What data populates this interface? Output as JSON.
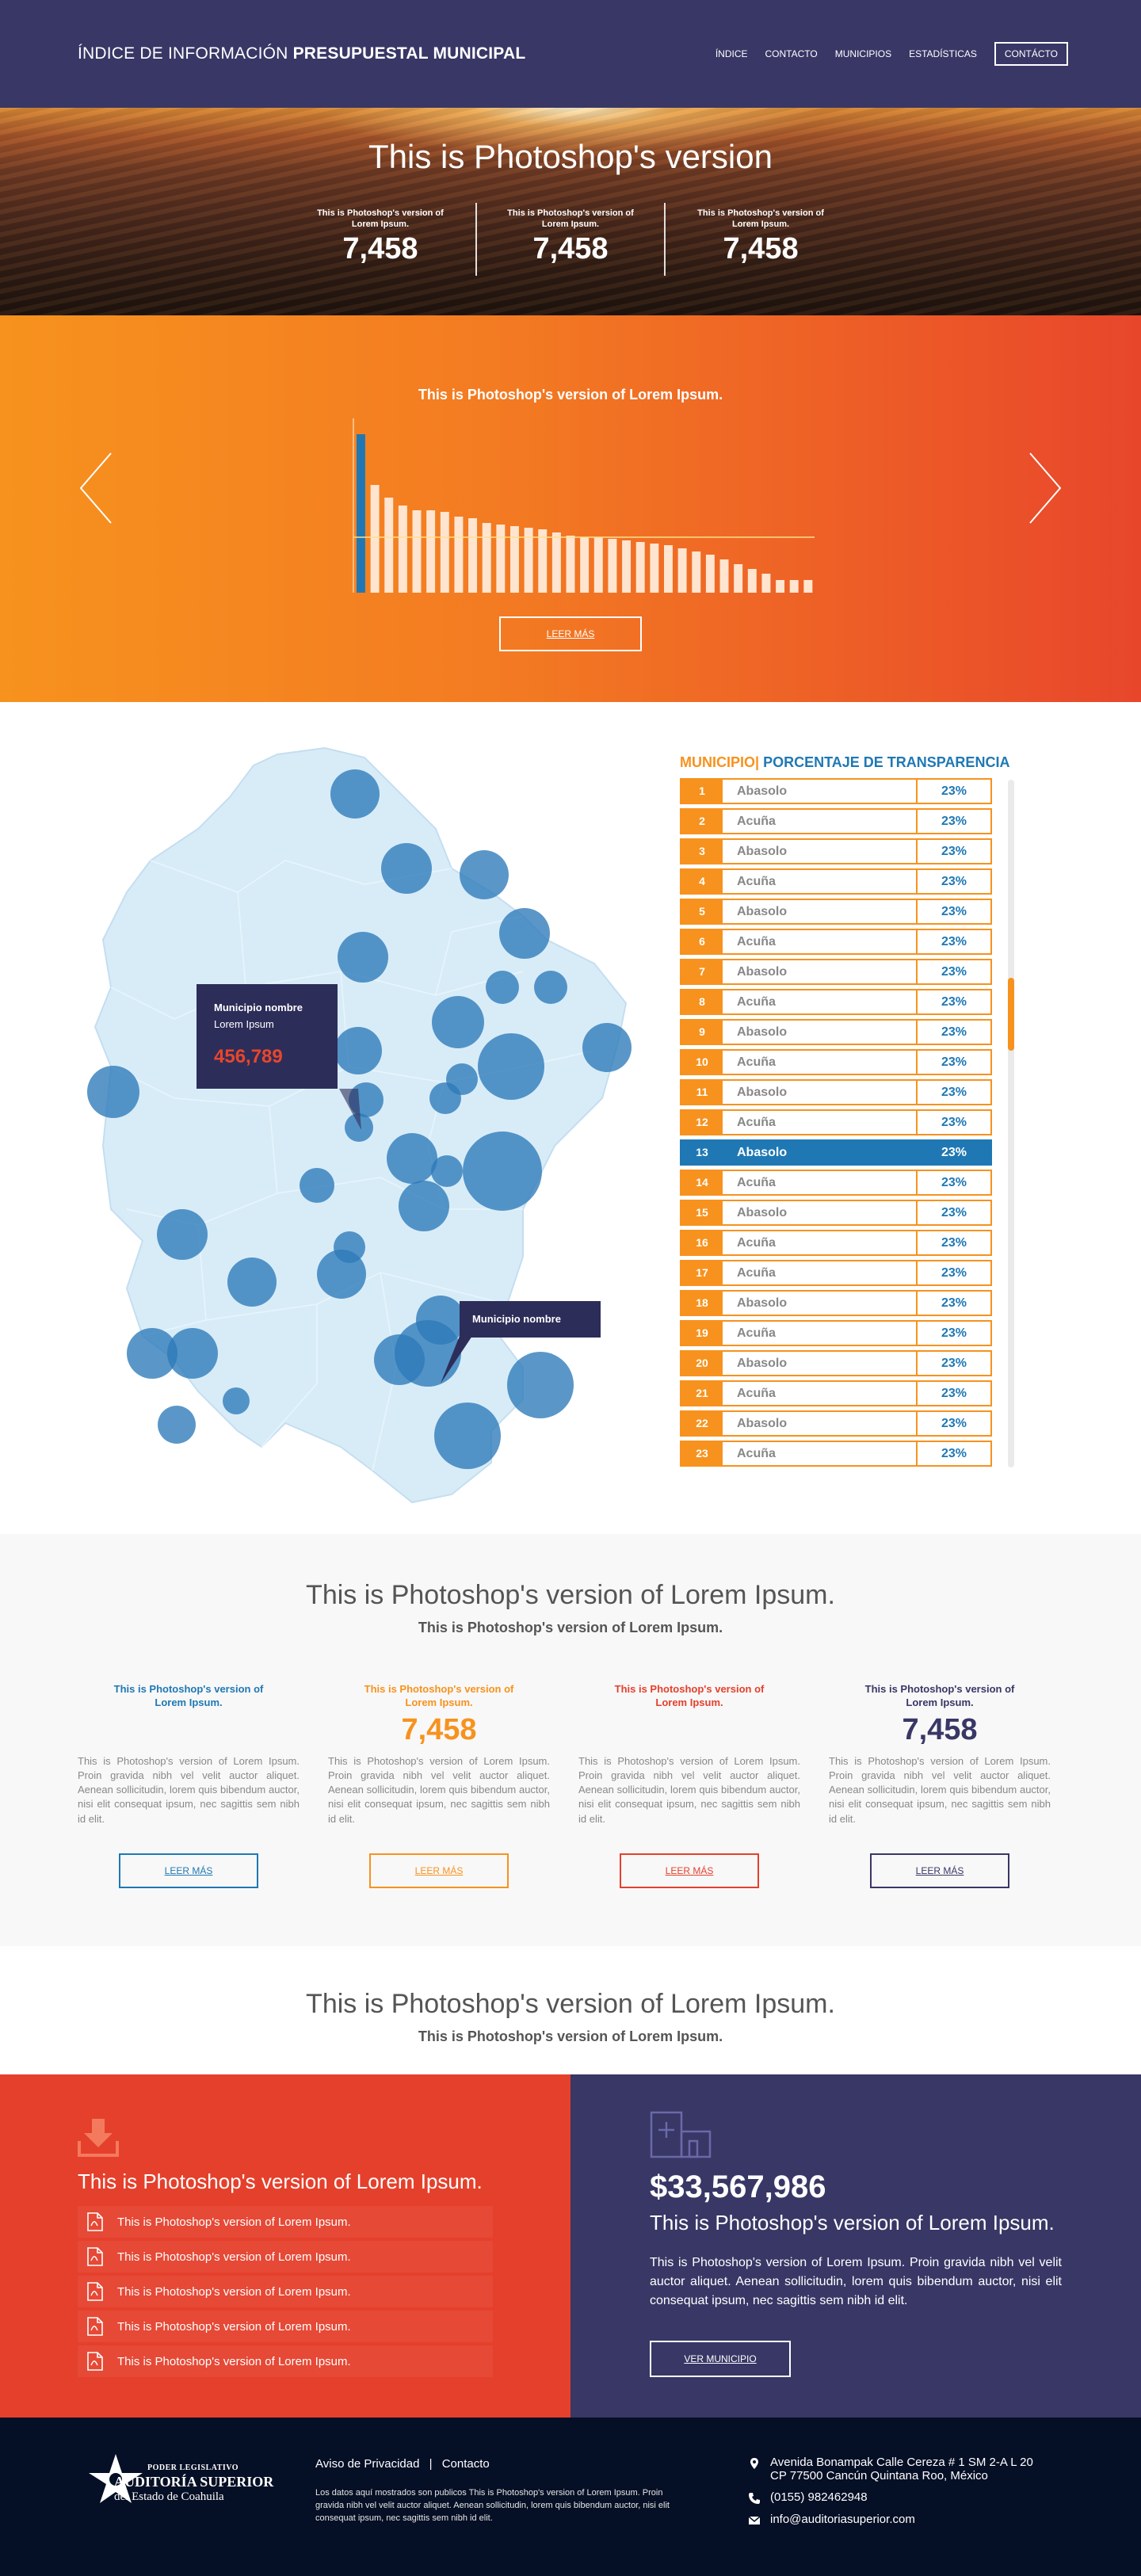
{
  "nav": {
    "brand_light": "ÍNDICE DE INFORMACIÓN",
    "brand_bold": "PRESUPUESTAL MUNICIPAL",
    "links": [
      "ÍNDICE",
      "CONTACTO",
      "MUNICIPIOS",
      "ESTADÍSTICAS"
    ],
    "cta": "CONTÁCTO"
  },
  "hero": {
    "title": "This is Photoshop's version",
    "stats": [
      {
        "label": "This is Photoshop's version of Lorem Ipsum.",
        "value": "7,458"
      },
      {
        "label": "This is Photoshop's version of Lorem Ipsum.",
        "value": "7,458"
      },
      {
        "label": "This is Photoshop's version of Lorem Ipsum.",
        "value": "7,458"
      }
    ]
  },
  "chart_section": {
    "title": "This is Photoshop's version of Lorem Ipsum.",
    "button": "LEER MÁS"
  },
  "chart_data": {
    "type": "bar",
    "title": "This is Photoshop's version of Lorem Ipsum.",
    "values": [
      100,
      68,
      60,
      55,
      52,
      52,
      51,
      48,
      47,
      44,
      43,
      42,
      41,
      40,
      38,
      36,
      35,
      35,
      34,
      33,
      32,
      31,
      30,
      28,
      26,
      24,
      21,
      18,
      15,
      12,
      8,
      8,
      8
    ],
    "highlight_index": 0,
    "reference_line": 35,
    "ylim": [
      0,
      100
    ],
    "colors": {
      "highlight": "#1f78b4",
      "bar": "#ffe5d0",
      "line": "#ffe08a",
      "axis": "#ffd0a0"
    }
  },
  "map": {
    "tooltip_main": {
      "name": "Municipio nombre",
      "sub": "Lorem Ipsum",
      "value": "456,789"
    },
    "tooltip_secondary": {
      "name": "Municipio nombre"
    }
  },
  "table": {
    "header_a": "MUNICIPIO",
    "header_sep": "|",
    "header_b": "PORCENTAJE DE TRANSPARENCIA",
    "selected_index": 12,
    "rows": [
      {
        "n": "1",
        "name": "Abasolo",
        "pct": "23%"
      },
      {
        "n": "2",
        "name": "Acuña",
        "pct": "23%"
      },
      {
        "n": "3",
        "name": "Abasolo",
        "pct": "23%"
      },
      {
        "n": "4",
        "name": "Acuña",
        "pct": "23%"
      },
      {
        "n": "5",
        "name": "Abasolo",
        "pct": "23%"
      },
      {
        "n": "6",
        "name": "Acuña",
        "pct": "23%"
      },
      {
        "n": "7",
        "name": "Abasolo",
        "pct": "23%"
      },
      {
        "n": "8",
        "name": "Acuña",
        "pct": "23%"
      },
      {
        "n": "9",
        "name": "Abasolo",
        "pct": "23%"
      },
      {
        "n": "10",
        "name": "Acuña",
        "pct": "23%"
      },
      {
        "n": "11",
        "name": "Abasolo",
        "pct": "23%"
      },
      {
        "n": "12",
        "name": "Acuña",
        "pct": "23%"
      },
      {
        "n": "13",
        "name": "Abasolo",
        "pct": "23%"
      },
      {
        "n": "14",
        "name": "Acuña",
        "pct": "23%"
      },
      {
        "n": "15",
        "name": "Abasolo",
        "pct": "23%"
      },
      {
        "n": "16",
        "name": "Acuña",
        "pct": "23%"
      },
      {
        "n": "17",
        "name": "Acuña",
        "pct": "23%"
      },
      {
        "n": "18",
        "name": "Abasolo",
        "pct": "23%"
      },
      {
        "n": "19",
        "name": "Acuña",
        "pct": "23%"
      },
      {
        "n": "20",
        "name": "Abasolo",
        "pct": "23%"
      },
      {
        "n": "21",
        "name": "Acuña",
        "pct": "23%"
      },
      {
        "n": "22",
        "name": "Abasolo",
        "pct": "23%"
      },
      {
        "n": "23",
        "name": "Acuña",
        "pct": "23%"
      }
    ]
  },
  "info": {
    "title": "This is Photoshop's version of Lorem Ipsum.",
    "subtitle": "This is Photoshop's version of Lorem Ipsum.",
    "cards": [
      {
        "head": "This is Photoshop's version of Lorem Ipsum.",
        "value": "",
        "body": "This is Photoshop's version of Lorem Ipsum. Proin gravida nibh vel velit auctor aliquet. Aenean sollicitudin, lorem quis bibendum auctor, nisi elit consequat ipsum, nec sagittis sem nibh id elit.",
        "button": "LEER MÁS",
        "color": "#1f78b4"
      },
      {
        "head": "This is Photoshop's version of Lorem Ipsum.",
        "value": "7,458",
        "body": "This is Photoshop's version of Lorem Ipsum. Proin gravida nibh vel velit auctor aliquet. Aenean sollicitudin, lorem quis bibendum auctor, nisi elit consequat ipsum, nec sagittis sem nibh id elit.",
        "button": "LEER MÁS",
        "color": "#f7921e"
      },
      {
        "head": "This is Photoshop's version of Lorem Ipsum.",
        "value": "",
        "body": "This is Photoshop's version of Lorem Ipsum. Proin gravida nibh vel velit auctor aliquet. Aenean sollicitudin, lorem quis bibendum auctor, nisi elit consequat ipsum, nec sagittis sem nibh id elit.",
        "button": "LEER MÁS",
        "color": "#e5402c"
      },
      {
        "head": "This is Photoshop's version of Lorem Ipsum.",
        "value": "7,458",
        "body": "This is Photoshop's version of Lorem Ipsum. Proin gravida nibh vel velit auctor aliquet. Aenean sollicitudin, lorem quis bibendum auctor, nisi elit consequat ipsum, nec sagittis sem nibh id elit.",
        "button": "LEER MÁS",
        "color": "#383766"
      }
    ]
  },
  "quote": {
    "title": "This is Photoshop's version of Lorem Ipsum.",
    "subtitle": "This is Photoshop's version of Lorem Ipsum."
  },
  "downloads": {
    "title": "This is Photoshop's version of Lorem Ipsum.",
    "items": [
      "This is Photoshop's version of Lorem Ipsum.",
      "This is Photoshop's version of Lorem Ipsum.",
      "This is Photoshop's version of Lorem Ipsum.",
      "This is Photoshop's version of Lorem Ipsum.",
      "This is Photoshop's version of Lorem Ipsum."
    ]
  },
  "budget": {
    "amount": "$33,567,986",
    "subtitle": "This is Photoshop's version of Lorem Ipsum.",
    "body": "This is Photoshop's version of Lorem Ipsum. Proin gravida nibh vel velit auctor aliquet. Aenean sollicitudin, lorem quis bibendum auctor, nisi elit consequat ipsum, nec sagittis sem nibh id elit.",
    "button": "VER MUNICIPIO"
  },
  "footer": {
    "org_line1": "PODER LEGISLATIVO",
    "org_line2": "AUDITORÍA SUPERIOR",
    "org_line3": "del Estado de Coahuila",
    "link_privacy": "Aviso de Privacidad",
    "link_sep": "|",
    "link_contact": "Contacto",
    "disclaimer": "Los datos aquí mostrados son publicos This is Photoshop's version of Lorem Ipsum. Proin gravida nibh vel velit auctor aliquet. Aenean sollicitudin, lorem quis bibendum auctor, nisi elit consequat ipsum, nec sagittis sem nibh id elit.",
    "address_1": "Avenida Bonampak Calle Cereza # 1 SM 2-A L 20",
    "address_2": "CP 77500 Cancún Quintana Roo, México",
    "phone": "(0155) 982462948",
    "email": "info@auditoriasuperior.com"
  }
}
